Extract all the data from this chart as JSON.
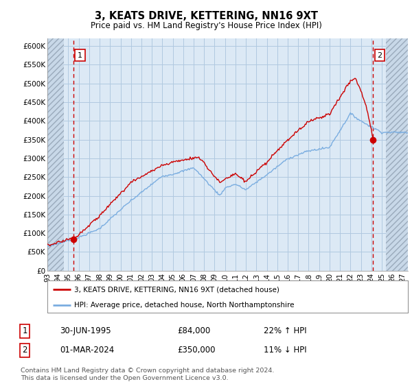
{
  "title": "3, KEATS DRIVE, KETTERING, NN16 9XT",
  "subtitle": "Price paid vs. HM Land Registry's House Price Index (HPI)",
  "sale1": {
    "date": "30-JUN-1995",
    "price": 84000,
    "label": "1",
    "hpi_pct": "22% ↑ HPI"
  },
  "sale2": {
    "date": "01-MAR-2024",
    "price": 350000,
    "label": "2",
    "hpi_pct": "11% ↓ HPI"
  },
  "ylim": [
    0,
    620000
  ],
  "yticks": [
    0,
    50000,
    100000,
    150000,
    200000,
    250000,
    300000,
    350000,
    400000,
    450000,
    500000,
    550000,
    600000
  ],
  "xlim_start": 1993.0,
  "xlim_end": 2027.5,
  "line_color_red": "#cc0000",
  "line_color_blue": "#7aade0",
  "plot_bg": "#dce9f5",
  "grid_color": "#b8cfe8",
  "legend_label1": "3, KEATS DRIVE, KETTERING, NN16 9XT (detached house)",
  "legend_label2": "HPI: Average price, detached house, North Northamptonshire",
  "footer": "Contains HM Land Registry data © Crown copyright and database right 2024.\nThis data is licensed under the Open Government Licence v3.0.",
  "sale1_x": 1995.5,
  "sale1_y": 84000,
  "sale2_x": 2024.17,
  "sale2_y": 350000,
  "hatch_left_end": 1994.58,
  "hatch_right_start": 2025.42
}
